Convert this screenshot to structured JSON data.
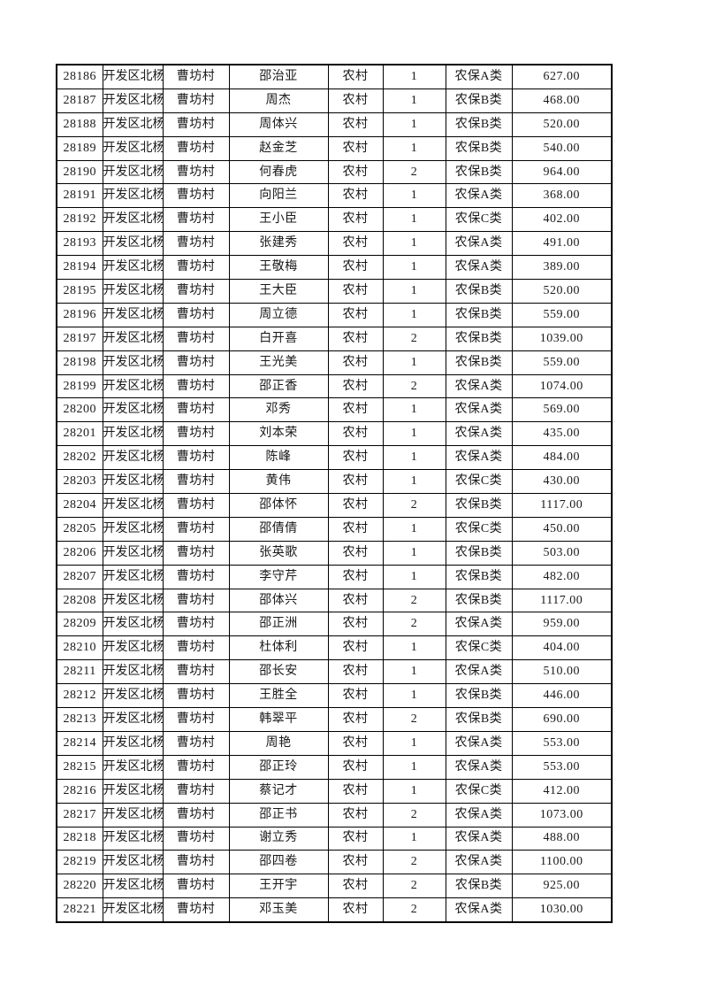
{
  "colors": {
    "page_background": "#ffffff",
    "grid_border": "#000000",
    "text": "#1a1a1a"
  },
  "table": {
    "rows": [
      [
        "28186",
        "开发区北杨",
        "曹坊村",
        "邵治亚",
        "农村",
        "1",
        "农保A类",
        "627.00"
      ],
      [
        "28187",
        "开发区北杨",
        "曹坊村",
        "周杰",
        "农村",
        "1",
        "农保B类",
        "468.00"
      ],
      [
        "28188",
        "开发区北杨",
        "曹坊村",
        "周体兴",
        "农村",
        "1",
        "农保B类",
        "520.00"
      ],
      [
        "28189",
        "开发区北杨",
        "曹坊村",
        "赵金芝",
        "农村",
        "1",
        "农保B类",
        "540.00"
      ],
      [
        "28190",
        "开发区北杨",
        "曹坊村",
        "何春虎",
        "农村",
        "2",
        "农保B类",
        "964.00"
      ],
      [
        "28191",
        "开发区北杨",
        "曹坊村",
        "向阳兰",
        "农村",
        "1",
        "农保A类",
        "368.00"
      ],
      [
        "28192",
        "开发区北杨",
        "曹坊村",
        "王小臣",
        "农村",
        "1",
        "农保C类",
        "402.00"
      ],
      [
        "28193",
        "开发区北杨",
        "曹坊村",
        "张建秀",
        "农村",
        "1",
        "农保A类",
        "491.00"
      ],
      [
        "28194",
        "开发区北杨",
        "曹坊村",
        "王敬梅",
        "农村",
        "1",
        "农保A类",
        "389.00"
      ],
      [
        "28195",
        "开发区北杨",
        "曹坊村",
        "王大臣",
        "农村",
        "1",
        "农保B类",
        "520.00"
      ],
      [
        "28196",
        "开发区北杨",
        "曹坊村",
        "周立德",
        "农村",
        "1",
        "农保B类",
        "559.00"
      ],
      [
        "28197",
        "开发区北杨",
        "曹坊村",
        "白开喜",
        "农村",
        "2",
        "农保B类",
        "1039.00"
      ],
      [
        "28198",
        "开发区北杨",
        "曹坊村",
        "王光美",
        "农村",
        "1",
        "农保B类",
        "559.00"
      ],
      [
        "28199",
        "开发区北杨",
        "曹坊村",
        "邵正香",
        "农村",
        "2",
        "农保A类",
        "1074.00"
      ],
      [
        "28200",
        "开发区北杨",
        "曹坊村",
        "邓秀",
        "农村",
        "1",
        "农保A类",
        "569.00"
      ],
      [
        "28201",
        "开发区北杨",
        "曹坊村",
        "刘本荣",
        "农村",
        "1",
        "农保A类",
        "435.00"
      ],
      [
        "28202",
        "开发区北杨",
        "曹坊村",
        "陈峰",
        "农村",
        "1",
        "农保A类",
        "484.00"
      ],
      [
        "28203",
        "开发区北杨",
        "曹坊村",
        "黄伟",
        "农村",
        "1",
        "农保C类",
        "430.00"
      ],
      [
        "28204",
        "开发区北杨",
        "曹坊村",
        "邵体怀",
        "农村",
        "2",
        "农保B类",
        "1117.00"
      ],
      [
        "28205",
        "开发区北杨",
        "曹坊村",
        "邵倩倩",
        "农村",
        "1",
        "农保C类",
        "450.00"
      ],
      [
        "28206",
        "开发区北杨",
        "曹坊村",
        "张英歌",
        "农村",
        "1",
        "农保B类",
        "503.00"
      ],
      [
        "28207",
        "开发区北杨",
        "曹坊村",
        "李守芹",
        "农村",
        "1",
        "农保B类",
        "482.00"
      ],
      [
        "28208",
        "开发区北杨",
        "曹坊村",
        "邵体兴",
        "农村",
        "2",
        "农保B类",
        "1117.00"
      ],
      [
        "28209",
        "开发区北杨",
        "曹坊村",
        "邵正洲",
        "农村",
        "2",
        "农保A类",
        "959.00"
      ],
      [
        "28210",
        "开发区北杨",
        "曹坊村",
        "杜体利",
        "农村",
        "1",
        "农保C类",
        "404.00"
      ],
      [
        "28211",
        "开发区北杨",
        "曹坊村",
        "邵长安",
        "农村",
        "1",
        "农保A类",
        "510.00"
      ],
      [
        "28212",
        "开发区北杨",
        "曹坊村",
        "王胜全",
        "农村",
        "1",
        "农保B类",
        "446.00"
      ],
      [
        "28213",
        "开发区北杨",
        "曹坊村",
        "韩翠平",
        "农村",
        "2",
        "农保B类",
        "690.00"
      ],
      [
        "28214",
        "开发区北杨",
        "曹坊村",
        "周艳",
        "农村",
        "1",
        "农保A类",
        "553.00"
      ],
      [
        "28215",
        "开发区北杨",
        "曹坊村",
        "邵正玲",
        "农村",
        "1",
        "农保A类",
        "553.00"
      ],
      [
        "28216",
        "开发区北杨",
        "曹坊村",
        "蔡记才",
        "农村",
        "1",
        "农保C类",
        "412.00"
      ],
      [
        "28217",
        "开发区北杨",
        "曹坊村",
        "邵正书",
        "农村",
        "2",
        "农保A类",
        "1073.00"
      ],
      [
        "28218",
        "开发区北杨",
        "曹坊村",
        "谢立秀",
        "农村",
        "1",
        "农保A类",
        "488.00"
      ],
      [
        "28219",
        "开发区北杨",
        "曹坊村",
        "邵四卷",
        "农村",
        "2",
        "农保A类",
        "1100.00"
      ],
      [
        "28220",
        "开发区北杨",
        "曹坊村",
        "王开宇",
        "农村",
        "2",
        "农保B类",
        "925.00"
      ],
      [
        "28221",
        "开发区北杨",
        "曹坊村",
        "邓玉美",
        "农村",
        "2",
        "农保A类",
        "1030.00"
      ]
    ]
  }
}
